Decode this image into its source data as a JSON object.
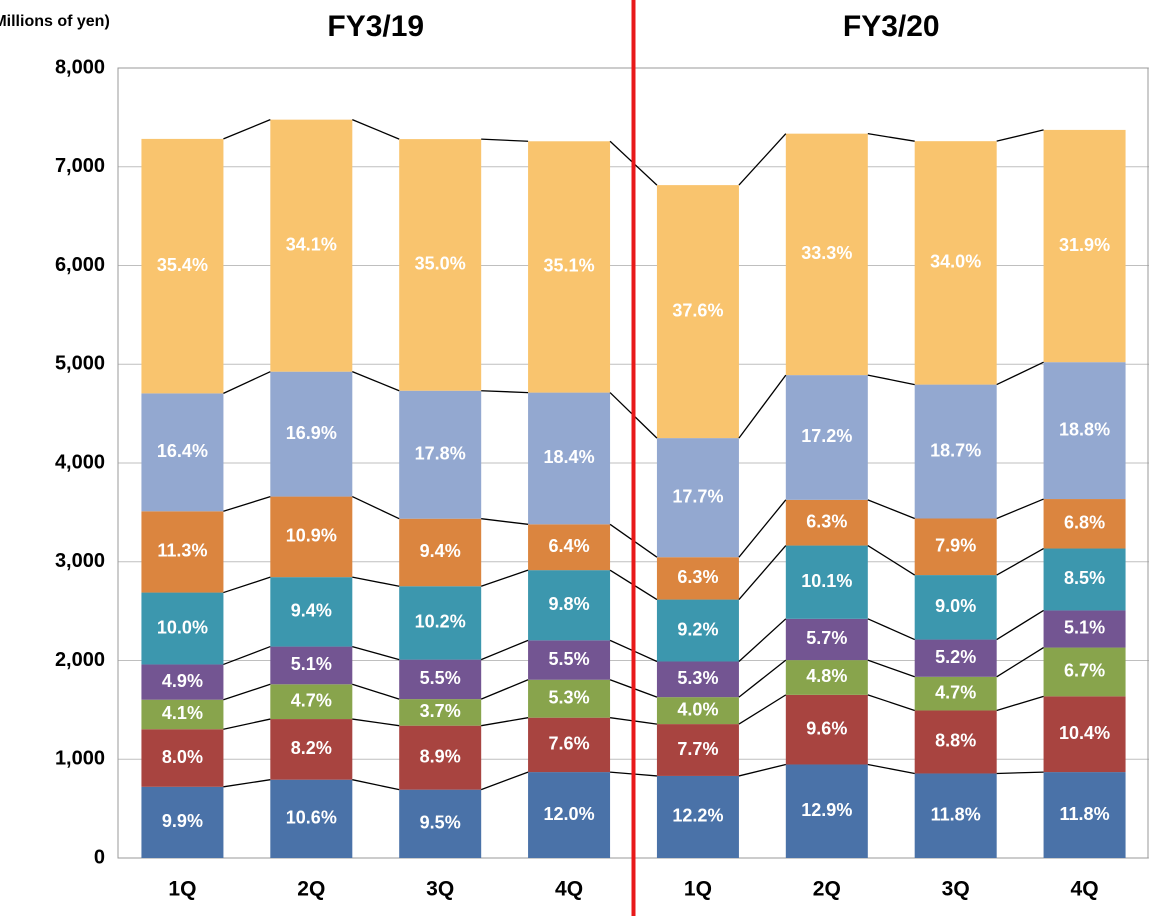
{
  "chart_data": {
    "type": "stacked_bar",
    "y_axis_label": "(Millions of yen)",
    "groups": [
      "FY3/19",
      "FY3/20"
    ],
    "categories": [
      "1Q",
      "2Q",
      "3Q",
      "4Q",
      "1Q",
      "2Q",
      "3Q",
      "4Q"
    ],
    "ylim": [
      0,
      8000
    ],
    "yticks": [
      {
        "value": 0,
        "label": "0"
      },
      {
        "value": 1000,
        "label": "1,000"
      },
      {
        "value": 2000,
        "label": "2,000"
      },
      {
        "value": 3000,
        "label": "3,000"
      },
      {
        "value": 4000,
        "label": "4,000"
      },
      {
        "value": 5000,
        "label": "5,000"
      },
      {
        "value": 6000,
        "label": "6,000"
      },
      {
        "value": 7000,
        "label": "7,000"
      },
      {
        "value": 8000,
        "label": "8,000"
      }
    ],
    "grid": true,
    "series": [
      {
        "color": "#4a72a8",
        "values": [
          721,
          793,
          692,
          870,
          831,
          947,
          856,
          870
        ],
        "labels": [
          "9.9%",
          "10.6%",
          "9.5%",
          "12.0%",
          "12.2%",
          "12.9%",
          "11.8%",
          "11.8%"
        ]
      },
      {
        "color": "#a84440",
        "values": [
          583,
          614,
          648,
          551,
          525,
          705,
          638,
          767
        ],
        "labels": [
          "8.0%",
          "8.2%",
          "8.9%",
          "7.6%",
          "7.7%",
          "9.6%",
          "8.8%",
          "10.4%"
        ]
      },
      {
        "color": "#88a44c",
        "values": [
          299,
          352,
          269,
          384,
          273,
          352,
          341,
          494
        ],
        "labels": [
          "4.1%",
          "4.7%",
          "3.7%",
          "5.3%",
          "4.0%",
          "4.8%",
          "4.7%",
          "6.7%"
        ]
      },
      {
        "color": "#735592",
        "values": [
          357,
          382,
          400,
          399,
          361,
          418,
          377,
          376
        ],
        "labels": [
          "4.9%",
          "5.1%",
          "5.5%",
          "5.5%",
          "5.3%",
          "5.7%",
          "5.2%",
          "5.1%"
        ]
      },
      {
        "color": "#3c97ae",
        "values": [
          728,
          703,
          743,
          711,
          627,
          742,
          653,
          627
        ],
        "labels": [
          "10.0%",
          "9.4%",
          "10.2%",
          "9.8%",
          "9.2%",
          "10.1%",
          "9.0%",
          "8.5%"
        ]
      },
      {
        "color": "#db853f",
        "values": [
          823,
          816,
          684,
          464,
          429,
          463,
          573,
          501
        ],
        "labels": [
          "11.3%",
          "10.9%",
          "9.4%",
          "6.4%",
          "6.3%",
          "6.3%",
          "7.9%",
          "6.8%"
        ]
      },
      {
        "color": "#93a8d0",
        "values": [
          1194,
          1265,
          1296,
          1334,
          1206,
          1263,
          1356,
          1386
        ],
        "labels": [
          "16.4%",
          "16.9%",
          "17.8%",
          "18.4%",
          "17.7%",
          "17.2%",
          "18.7%",
          "18.8%"
        ]
      },
      {
        "color": "#f9c46e",
        "values": [
          2577,
          2552,
          2548,
          2545,
          2562,
          2445,
          2465,
          2352
        ],
        "labels": [
          "35.4%",
          "34.1%",
          "35.0%",
          "35.1%",
          "37.6%",
          "33.3%",
          "34.0%",
          "31.9%"
        ]
      }
    ]
  }
}
